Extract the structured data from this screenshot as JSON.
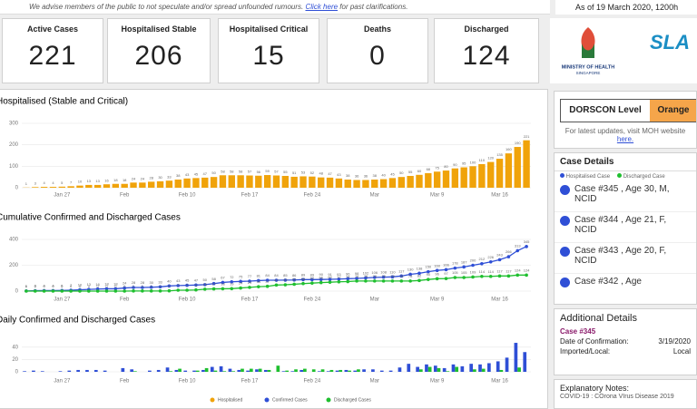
{
  "banner": {
    "text": "We advise members of the public to not speculate and/or spread unfounded rumours. ",
    "link": "Click here",
    "text_after": " for past clarifications.",
    "as_of": "As of 19 March 2020, 1200h"
  },
  "kpis": [
    {
      "label": "Active Cases",
      "value": 221
    },
    {
      "label": "Hospitalised Stable",
      "value": 206
    },
    {
      "label": "Hospitalised Critical",
      "value": 15
    },
    {
      "label": "Deaths",
      "value": 0
    },
    {
      "label": "Discharged",
      "value": 124
    }
  ],
  "logos": {
    "moh": [
      "MINISTRY OF HEALTH",
      "SINGAPORE"
    ],
    "sla": "SLA"
  },
  "dorscon": {
    "label": "DORSCON Level",
    "level": "Orange",
    "note": "For latest updates, visit MOH website ",
    "note_link": "here."
  },
  "case_details": {
    "title": "Case Details",
    "legend": [
      "Hospitalised Case",
      "Discharged Case"
    ],
    "cases": [
      "Case #345 , Age 30, M, NCID",
      "Case #344 , Age 21, F, NCID",
      "Case #343 , Age 20, F, NCID",
      "Case #342 , Age"
    ]
  },
  "additional_details": {
    "title": "Additional Details",
    "case": "Case #345",
    "rows": [
      [
        "Date of Confirmation:",
        "3/19/2020"
      ],
      [
        "Imported/Local:",
        "Local"
      ]
    ]
  },
  "explanatory_notes": {
    "title": "Explanatory Notes:",
    "text": "COVID-19 : COrona VIrus Disease 2019"
  },
  "chart_data": [
    {
      "type": "bar",
      "title": "Hospitalised (Stable and Critical)",
      "categories": [
        null,
        null,
        null,
        null,
        "Jan 27",
        null,
        null,
        null,
        null,
        null,
        null,
        "Feb",
        null,
        null,
        null,
        null,
        null,
        null,
        "Feb 10",
        null,
        null,
        null,
        null,
        null,
        null,
        "Feb 17",
        null,
        null,
        null,
        null,
        null,
        null,
        "Feb 24",
        null,
        null,
        null,
        null,
        null,
        null,
        "Mar",
        null,
        null,
        null,
        null,
        null,
        null,
        "Mar 9",
        null,
        null,
        null,
        null,
        null,
        null,
        "Mar 16",
        null,
        null,
        null
      ],
      "series": [
        {
          "name": "Hospitalised",
          "color": "#f0a30a",
          "values": [
            1,
            3,
            4,
            4,
            5,
            7,
            10,
            13,
            13,
            16,
            18,
            18,
            24,
            24,
            28,
            30,
            33,
            38,
            43,
            45,
            47,
            50,
            58,
            58,
            58,
            57,
            56,
            59,
            57,
            55,
            51,
            53,
            52,
            48,
            47,
            43,
            38,
            36,
            36,
            38,
            40,
            45,
            50,
            55,
            60,
            68,
            75,
            80,
            90,
            95,
            100,
            110,
            120,
            135,
            160,
            190,
            221
          ]
        }
      ],
      "ylim": [
        0,
        300
      ],
      "yticks": [
        0,
        100,
        200,
        300
      ],
      "grid": true,
      "data_labels": true
    },
    {
      "type": "line",
      "title": "Cumulative Confirmed and Discharged Cases",
      "categories": [
        null,
        null,
        null,
        null,
        "Jan 27",
        null,
        null,
        null,
        null,
        null,
        null,
        "Feb",
        null,
        null,
        null,
        null,
        null,
        null,
        "Feb 10",
        null,
        null,
        null,
        null,
        null,
        null,
        "Feb 17",
        null,
        null,
        null,
        null,
        null,
        null,
        "Feb 24",
        null,
        null,
        null,
        null,
        null,
        null,
        "Mar",
        null,
        null,
        null,
        null,
        null,
        null,
        "Mar 9",
        null,
        null,
        null,
        null,
        null,
        null,
        "Mar 16",
        null,
        null,
        null
      ],
      "series": [
        {
          "name": "Confirmed Cases",
          "color": "#2f4fd6",
          "values": [
            1,
            3,
            4,
            4,
            5,
            7,
            10,
            13,
            16,
            18,
            18,
            24,
            28,
            28,
            30,
            33,
            40,
            43,
            45,
            47,
            50,
            58,
            67,
            72,
            75,
            77,
            81,
            84,
            84,
            85,
            86,
            89,
            89,
            90,
            91,
            93,
            96,
            98,
            102,
            106,
            108,
            110,
            117,
            130,
            138,
            150,
            160,
            166,
            178,
            187,
            200,
            212,
            226,
            243,
            266,
            313,
            345
          ]
        },
        {
          "name": "Discharged Cases",
          "color": "#1fbf2f",
          "values": [
            0,
            0,
            0,
            0,
            0,
            0,
            0,
            0,
            0,
            0,
            0,
            0,
            1,
            1,
            1,
            1,
            2,
            7,
            7,
            9,
            15,
            17,
            18,
            19,
            24,
            29,
            34,
            37,
            47,
            49,
            53,
            58,
            62,
            66,
            69,
            72,
            74,
            78,
            78,
            78,
            78,
            78,
            78,
            78,
            82,
            90,
            96,
            97,
            105,
            105,
            109,
            114,
            114,
            117,
            117,
            124,
            124
          ]
        }
      ],
      "ylim": [
        0,
        400
      ],
      "yticks": [
        0,
        200,
        400
      ],
      "grid": true,
      "data_labels": true
    },
    {
      "type": "bar",
      "title": "Daily Confirmed and Discharged Cases",
      "categories": [
        null,
        null,
        null,
        null,
        "Jan 27",
        null,
        null,
        null,
        null,
        null,
        null,
        "Feb",
        null,
        null,
        null,
        null,
        null,
        null,
        "Feb 10",
        null,
        null,
        null,
        null,
        null,
        null,
        "Feb 17",
        null,
        null,
        null,
        null,
        null,
        null,
        "Feb 24",
        null,
        null,
        null,
        null,
        null,
        null,
        "Mar",
        null,
        null,
        null,
        null,
        null,
        null,
        "Mar 9",
        null,
        null,
        null,
        null,
        null,
        null,
        "Mar 16",
        null,
        null,
        null
      ],
      "series": [
        {
          "name": "Confirmed Cases",
          "color": "#2f4fd6",
          "values": [
            1,
            2,
            1,
            0,
            1,
            2,
            3,
            3,
            3,
            2,
            0,
            6,
            4,
            0,
            2,
            3,
            7,
            3,
            2,
            2,
            3,
            8,
            9,
            5,
            3,
            2,
            4,
            3,
            0,
            1,
            1,
            3,
            0,
            1,
            1,
            2,
            3,
            2,
            4,
            4,
            2,
            2,
            7,
            13,
            8,
            12,
            10,
            6,
            12,
            9,
            13,
            12,
            14,
            17,
            23,
            47,
            32
          ]
        },
        {
          "name": "Discharged Cases",
          "color": "#1fbf2f",
          "values": [
            0,
            0,
            0,
            0,
            0,
            0,
            0,
            0,
            0,
            0,
            0,
            0,
            1,
            0,
            0,
            0,
            1,
            5,
            0,
            2,
            6,
            2,
            1,
            1,
            5,
            5,
            5,
            3,
            10,
            2,
            4,
            5,
            4,
            4,
            3,
            3,
            2,
            4,
            0,
            0,
            0,
            0,
            0,
            0,
            4,
            8,
            6,
            1,
            8,
            0,
            4,
            5,
            0,
            3,
            0,
            7,
            0
          ]
        }
      ],
      "ylim": [
        0,
        50
      ],
      "yticks": [
        0,
        20,
        40
      ],
      "grid": true,
      "data_labels": false
    }
  ]
}
